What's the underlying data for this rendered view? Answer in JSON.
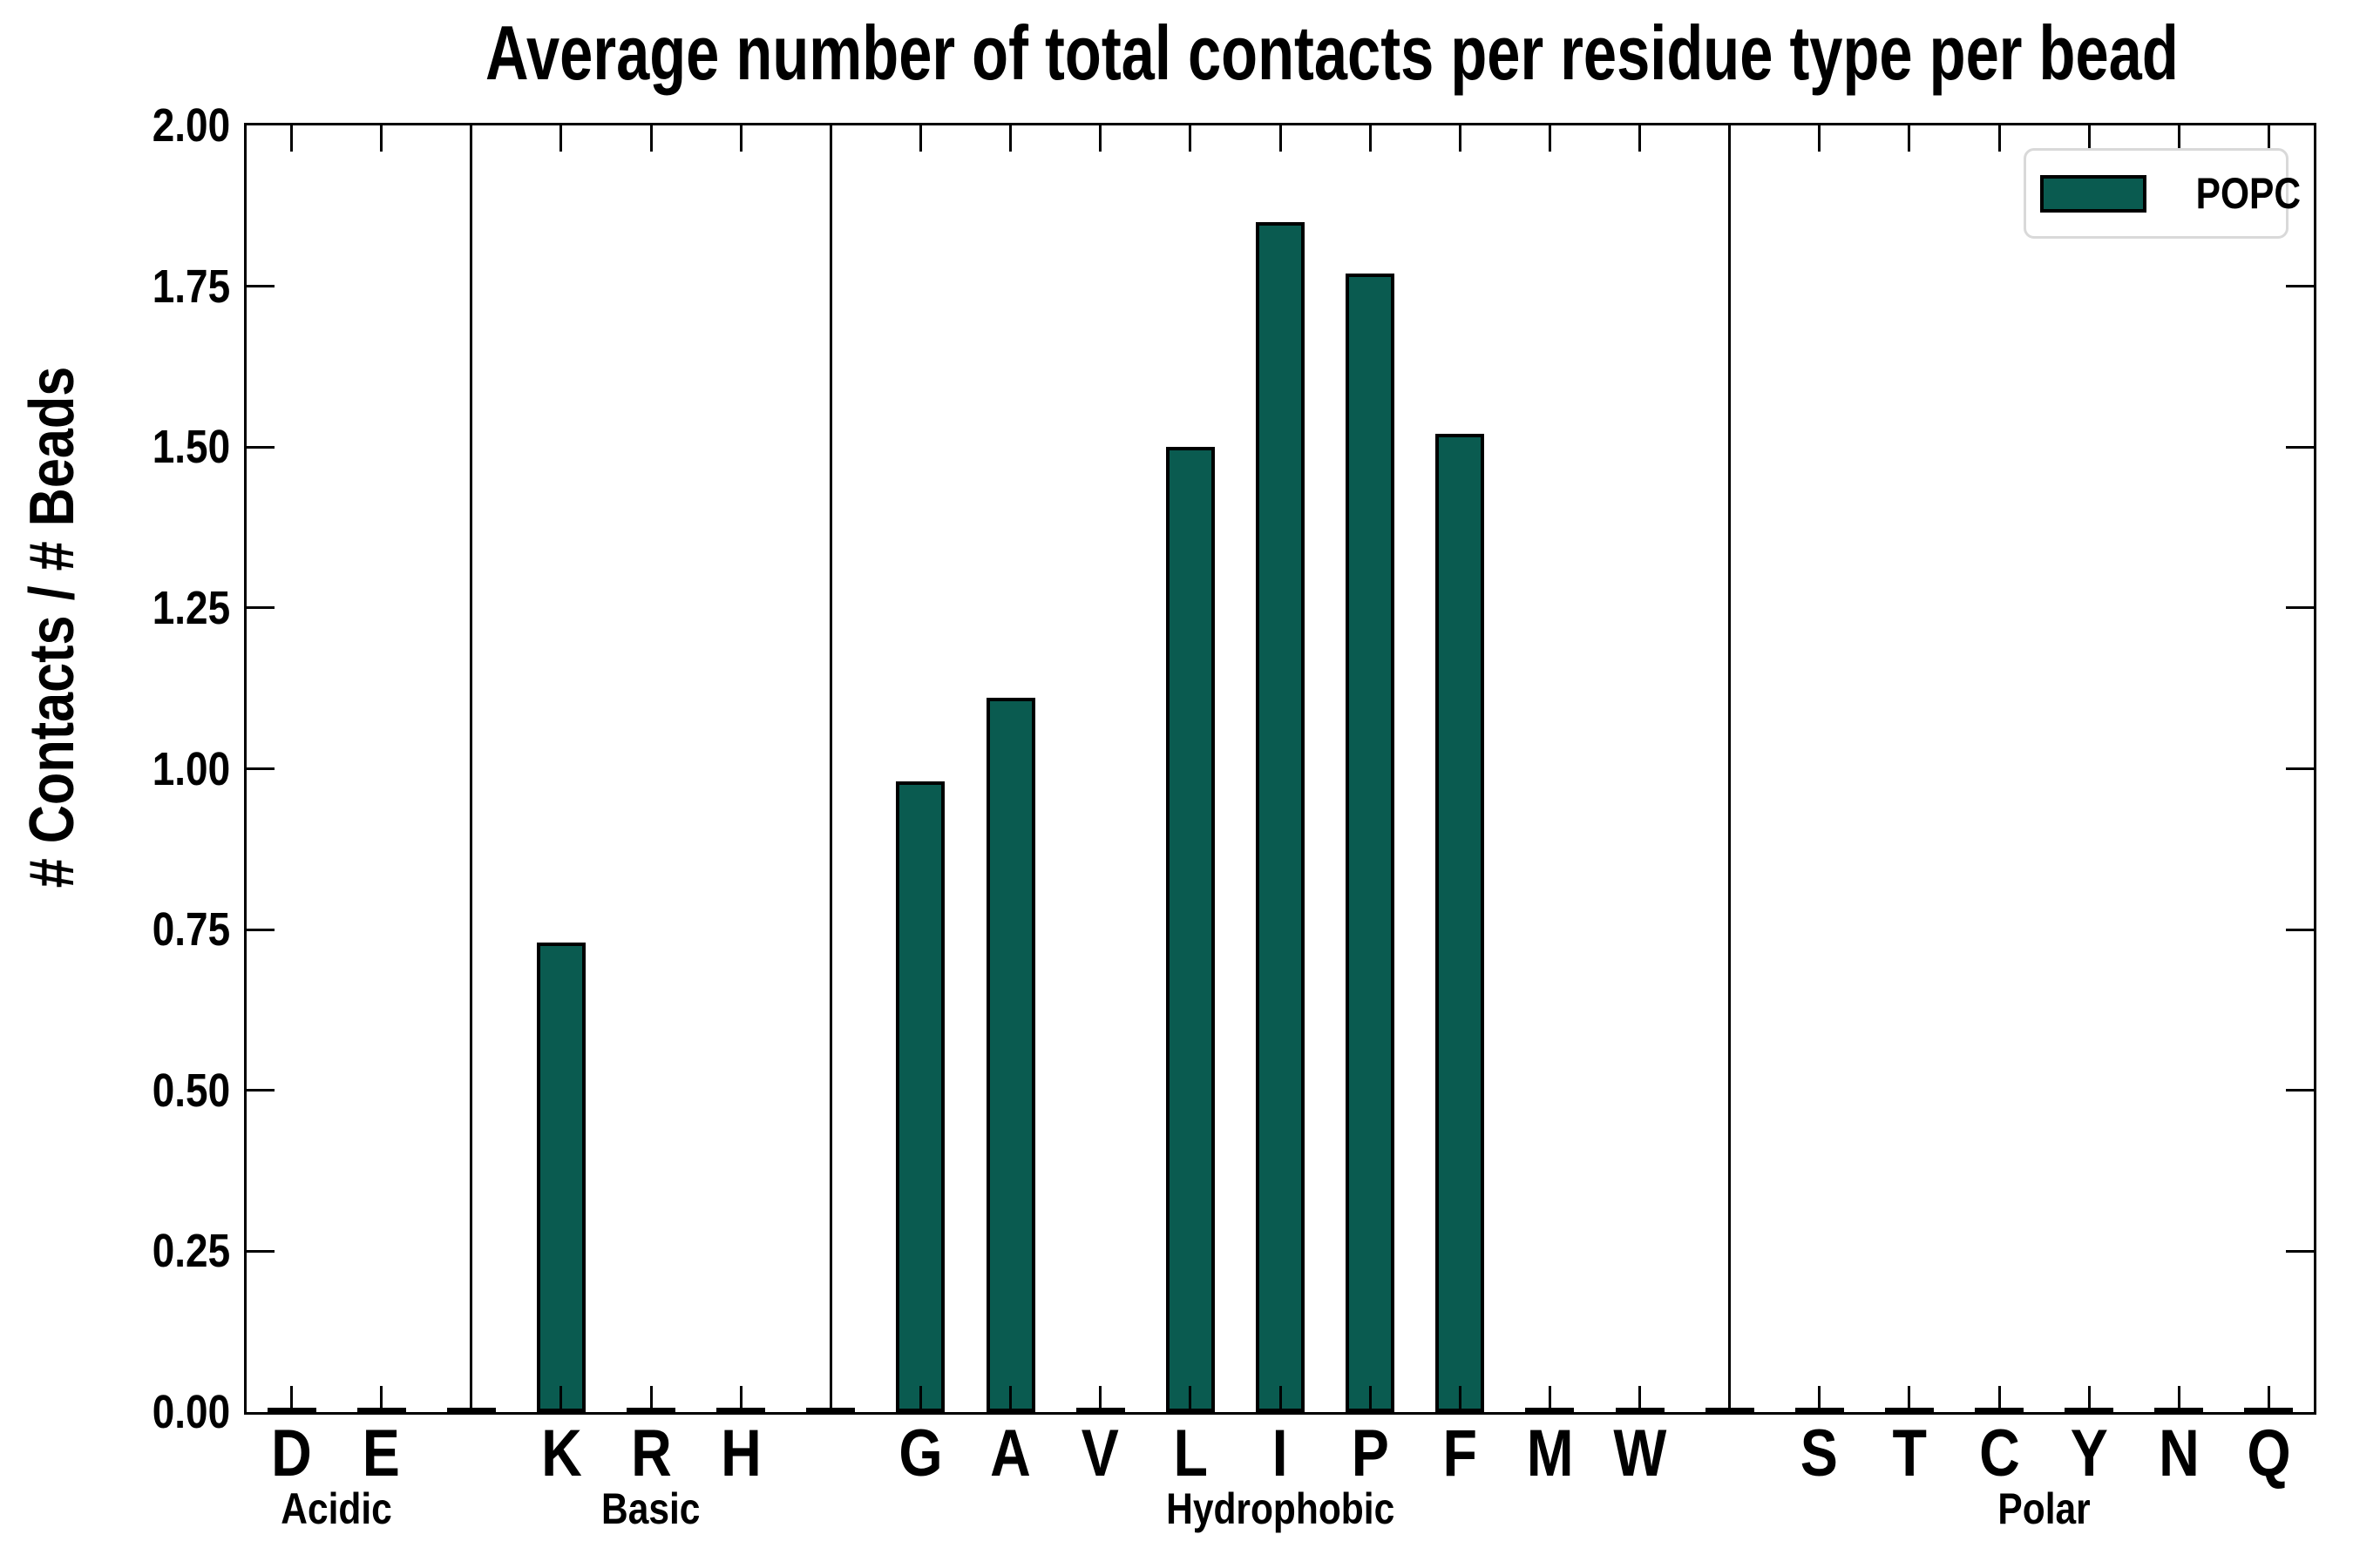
{
  "title": "Average number of total contacts per residue type per bead",
  "ylabel": "# Contacts / # Beads",
  "legend": {
    "label": "POPC",
    "swatch_color": "#0a5b50",
    "border_color": "#d9d9d9",
    "position": "upper right"
  },
  "colors": {
    "background": "#ffffff",
    "bar_fill": "#0a5b50",
    "bar_edge": "#000000",
    "axis": "#000000",
    "legend_border": "#d9d9d9"
  },
  "chart_data": {
    "type": "bar",
    "title": "Average number of total contacts per residue type per bead",
    "xlabel": "",
    "ylabel": "# Contacts / # Beads",
    "ylim": [
      0,
      2
    ],
    "ytick_step": 0.25,
    "ytick_labels": [
      "0.00",
      "0.25",
      "0.50",
      "0.75",
      "1.00",
      "1.25",
      "1.50",
      "1.75",
      "2.00"
    ],
    "grid": false,
    "legend_position": "upper right",
    "series_name": "POPC",
    "bar_color": "#0a5b50",
    "bar_edge_color": "#000000",
    "categories": [
      "D",
      "E",
      "K",
      "R",
      "H",
      "G",
      "A",
      "V",
      "L",
      "I",
      "P",
      "F",
      "M",
      "W",
      "S",
      "T",
      "C",
      "Y",
      "N",
      "Q"
    ],
    "values": [
      0,
      0,
      0.73,
      0,
      0,
      0.98,
      1.11,
      0,
      1.5,
      1.85,
      1.77,
      1.52,
      0,
      0,
      0,
      0,
      0,
      0,
      0,
      0
    ],
    "groups": [
      {
        "label": "Acidic",
        "categories": [
          "D",
          "E"
        ],
        "values": [
          0,
          0
        ]
      },
      {
        "label": "Basic",
        "categories": [
          "K",
          "R",
          "H"
        ],
        "values": [
          0.73,
          0,
          0
        ]
      },
      {
        "label": "Hydrophobic",
        "categories": [
          "G",
          "A",
          "V",
          "L",
          "I",
          "P",
          "F",
          "M",
          "W"
        ],
        "values": [
          0.98,
          1.11,
          0,
          1.5,
          1.85,
          1.77,
          1.52,
          0,
          0
        ]
      },
      {
        "label": "Polar",
        "categories": [
          "S",
          "T",
          "C",
          "Y",
          "N",
          "Q"
        ],
        "values": [
          0,
          0,
          0,
          0,
          0,
          0
        ]
      }
    ]
  }
}
